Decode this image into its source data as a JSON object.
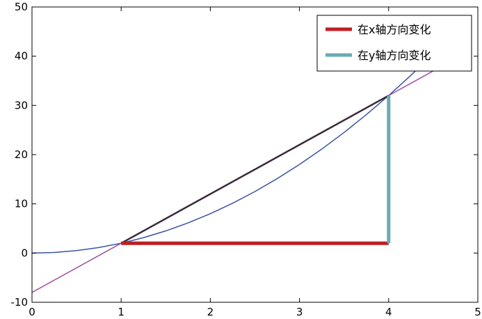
{
  "chart_data": {
    "type": "line",
    "xlim": [
      0,
      5
    ],
    "ylim": [
      -10,
      50
    ],
    "xticks": [
      0,
      1,
      2,
      3,
      4,
      5
    ],
    "yticks": [
      -10,
      0,
      10,
      20,
      30,
      40,
      50
    ],
    "grid": false,
    "legend_position": "top-right",
    "series": [
      {
        "kind": "curve",
        "function": "2x^2",
        "x": [
          0,
          0.25,
          0.5,
          0.75,
          1,
          1.25,
          1.5,
          1.75,
          2,
          2.25,
          2.5,
          2.75,
          3,
          3.25,
          3.5,
          3.75,
          4,
          4.25,
          4.5
        ],
        "y": [
          0,
          0.125,
          0.5,
          1.125,
          2,
          3.125,
          4.5,
          6.125,
          8,
          10.125,
          12.5,
          15.125,
          18,
          21.125,
          24.5,
          28.125,
          32,
          36.125,
          40.5
        ],
        "color": "#3a52a4"
      },
      {
        "kind": "secant-line",
        "function": "10x-8",
        "x": [
          0,
          4.6
        ],
        "y": [
          -8,
          38
        ],
        "color": "#9b4fa0"
      },
      {
        "kind": "chord",
        "x": [
          1,
          4
        ],
        "y": [
          2,
          32
        ],
        "color": "#3b2a3a"
      },
      {
        "name": "在x轴方向变化",
        "kind": "horizontal-change",
        "x": [
          1,
          4
        ],
        "y": [
          2,
          2
        ],
        "color": "#bf1e24"
      },
      {
        "name": "在y轴方向变化",
        "kind": "vertical-change",
        "x": [
          4,
          4
        ],
        "y": [
          2,
          32
        ],
        "color": "#6aaab5"
      }
    ]
  }
}
